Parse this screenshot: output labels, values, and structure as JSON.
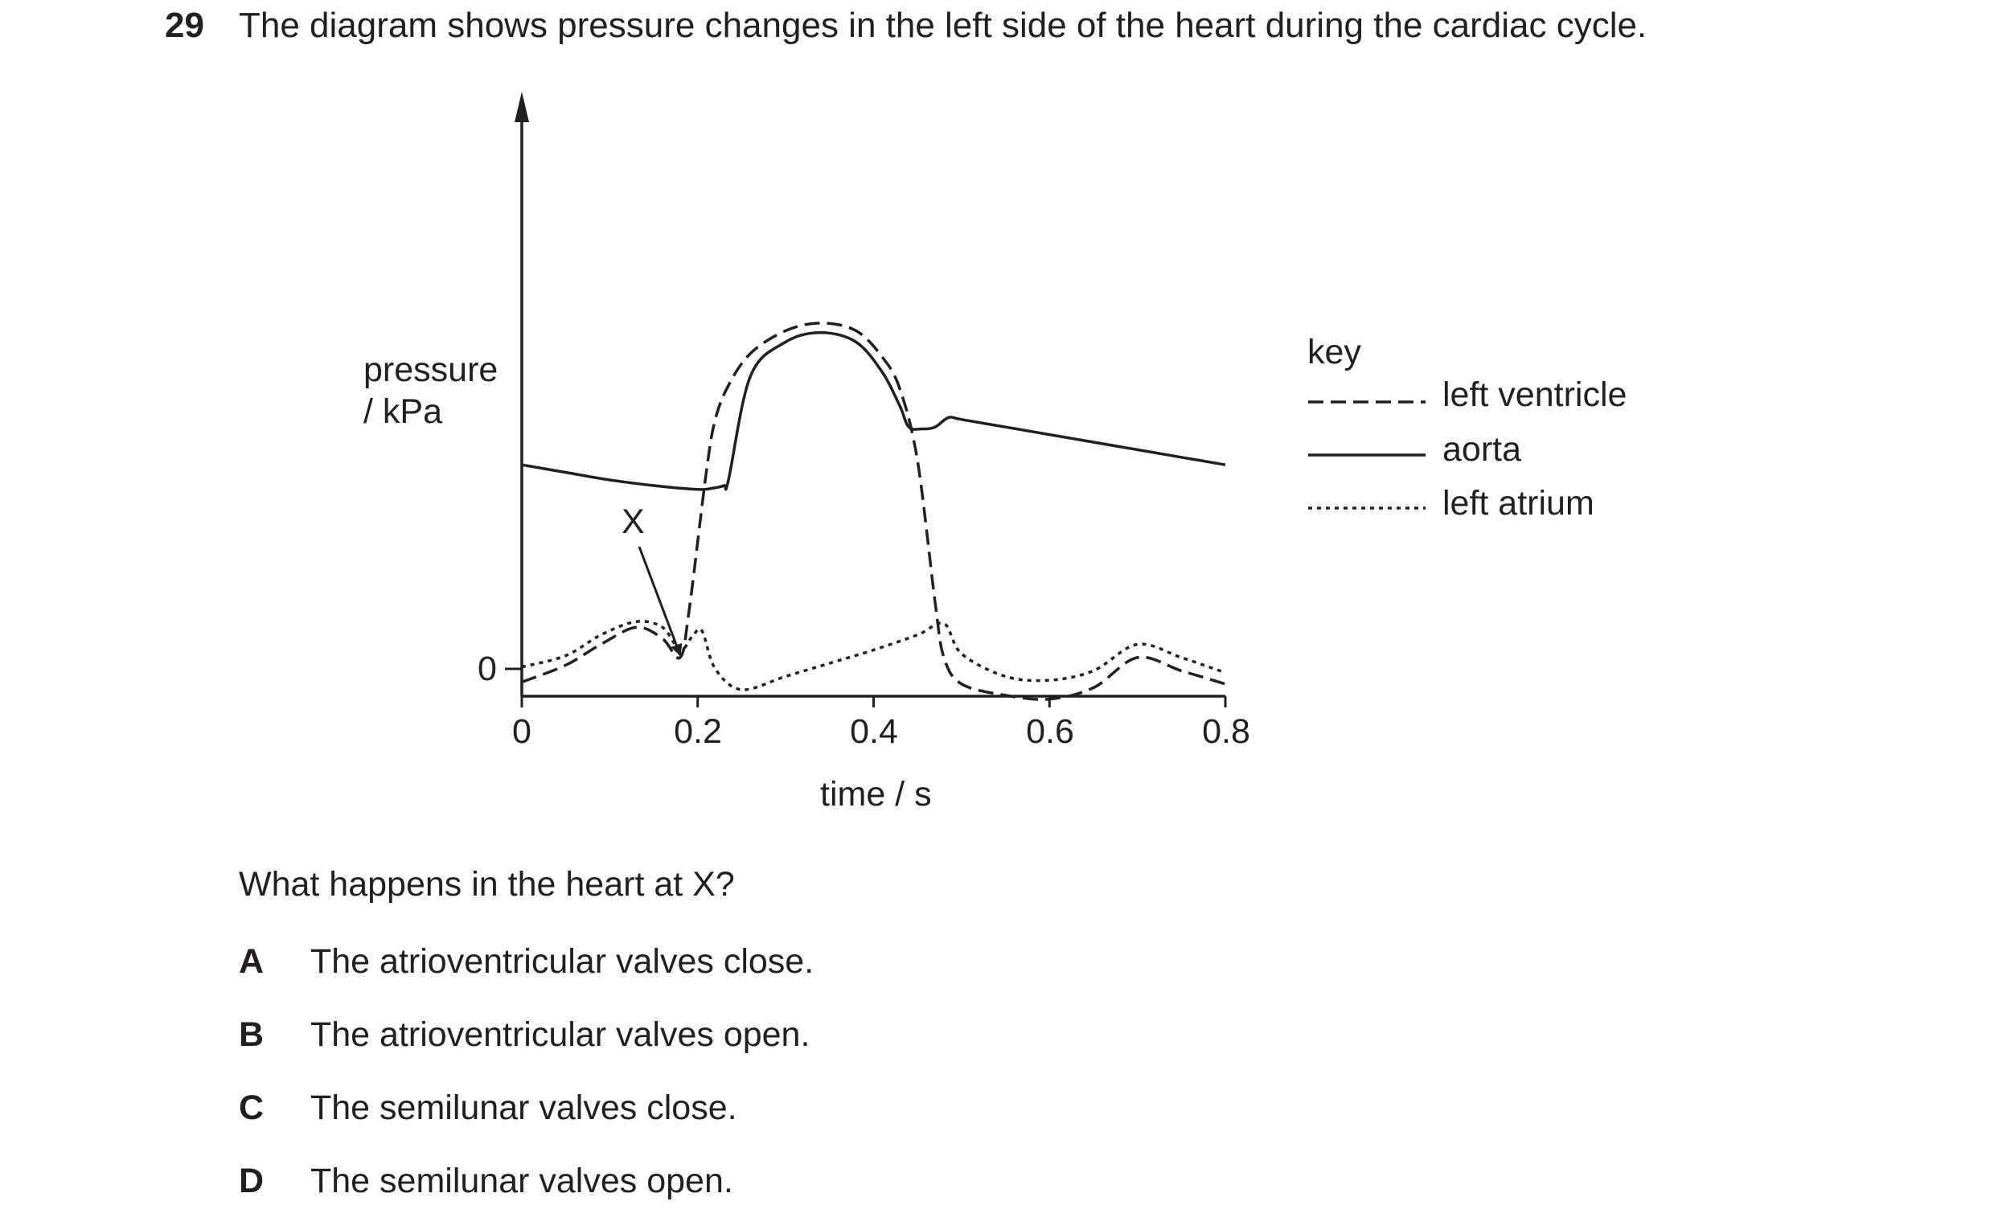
{
  "question": {
    "number": "29",
    "stem": "The diagram shows pressure changes in the left side of the heart during the cardiac cycle.",
    "prompt": "What happens in the heart at X?",
    "options": [
      {
        "letter": "A",
        "text": "The atrioventricular valves close."
      },
      {
        "letter": "B",
        "text": "The atrioventricular valves open."
      },
      {
        "letter": "C",
        "text": "The semilunar valves close."
      },
      {
        "letter": "D",
        "text": "The semilunar valves open."
      }
    ]
  },
  "chart_data": {
    "type": "line",
    "title": "",
    "xlabel": "time / s",
    "ylabel_line1": "pressure",
    "ylabel_line2": "/ kPa",
    "xlim": [
      0,
      0.8
    ],
    "x_ticks": [
      "0",
      "0.2",
      "0.4",
      "0.6",
      "0.8"
    ],
    "y_tick": "0",
    "grid": false,
    "legend_title": "key",
    "legend_position": "right",
    "annotation": {
      "label": "X",
      "x": 0.18,
      "y": 1.0
    },
    "series": [
      {
        "name": "left ventricle",
        "style": "dashed",
        "x": [
          0,
          0.05,
          0.09,
          0.13,
          0.16,
          0.18,
          0.19,
          0.21,
          0.22,
          0.235,
          0.26,
          0.3,
          0.34,
          0.38,
          0.41,
          0.43,
          0.45,
          0.47,
          0.48,
          0.5,
          0.55,
          0.6,
          0.65,
          0.7,
          0.75,
          0.8
        ],
        "y": [
          -0.7,
          0.2,
          1.3,
          2.2,
          1.6,
          0.6,
          3.0,
          10.5,
          13.2,
          15.0,
          16.7,
          17.9,
          18.3,
          17.9,
          16.5,
          14.8,
          11.0,
          3.5,
          0.6,
          -0.8,
          -1.4,
          -1.6,
          -1.0,
          0.6,
          -0.1,
          -0.8
        ]
      },
      {
        "name": "aorta",
        "style": "solid",
        "x": [
          0,
          0.05,
          0.1,
          0.15,
          0.2,
          0.215,
          0.23,
          0.235,
          0.26,
          0.3,
          0.34,
          0.38,
          0.41,
          0.43,
          0.44,
          0.455,
          0.47,
          0.485,
          0.5,
          0.55,
          0.6,
          0.65,
          0.7,
          0.75,
          0.8
        ],
        "y": [
          10.8,
          10.4,
          10.0,
          9.7,
          9.5,
          9.55,
          9.7,
          10.0,
          15.5,
          17.3,
          17.8,
          17.3,
          15.7,
          13.9,
          12.8,
          12.7,
          12.8,
          13.3,
          13.2,
          12.8,
          12.4,
          12.0,
          11.6,
          11.2,
          10.8
        ]
      },
      {
        "name": "left atrium",
        "style": "dotted",
        "x": [
          0,
          0.05,
          0.09,
          0.13,
          0.16,
          0.18,
          0.195,
          0.205,
          0.22,
          0.25,
          0.3,
          0.35,
          0.4,
          0.45,
          0.48,
          0.5,
          0.55,
          0.6,
          0.65,
          0.7,
          0.75,
          0.8
        ],
        "y": [
          0.1,
          0.7,
          1.8,
          2.5,
          2.2,
          1.0,
          1.8,
          2.0,
          0.0,
          -1.1,
          -0.4,
          0.3,
          1.0,
          1.8,
          2.4,
          0.8,
          -0.4,
          -0.6,
          -0.1,
          1.3,
          0.6,
          -0.2
        ]
      }
    ]
  }
}
